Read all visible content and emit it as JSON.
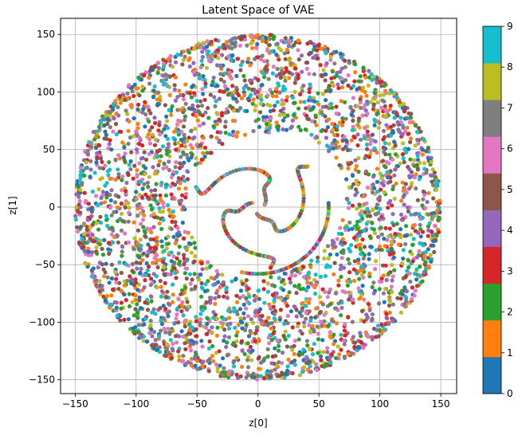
{
  "chart_data": {
    "type": "scatter",
    "title": "Latent Space of VAE",
    "xlabel": "z[0]",
    "ylabel": "z[1]",
    "xlim": [
      -162,
      163
    ],
    "ylim": [
      -162,
      164
    ],
    "xticks": [
      -150,
      -100,
      -50,
      0,
      50,
      100,
      150
    ],
    "yticks": [
      -150,
      -100,
      -50,
      0,
      50,
      100,
      150
    ],
    "grid": true,
    "colorbar": {
      "ticks": [
        0,
        1,
        2,
        3,
        4,
        5,
        6,
        7,
        8,
        9
      ],
      "colors": [
        "#1f77b4",
        "#ff7f0e",
        "#2ca02c",
        "#d62728",
        "#9467bd",
        "#8c564b",
        "#e377c2",
        "#7f7f7f",
        "#bcbd22",
        "#17becf"
      ],
      "position": "right"
    },
    "distribution": {
      "annulus_outer_radius": 150,
      "annulus_inner_radius": 60,
      "inner_spiral_arms": 3,
      "classes": 10
    }
  }
}
